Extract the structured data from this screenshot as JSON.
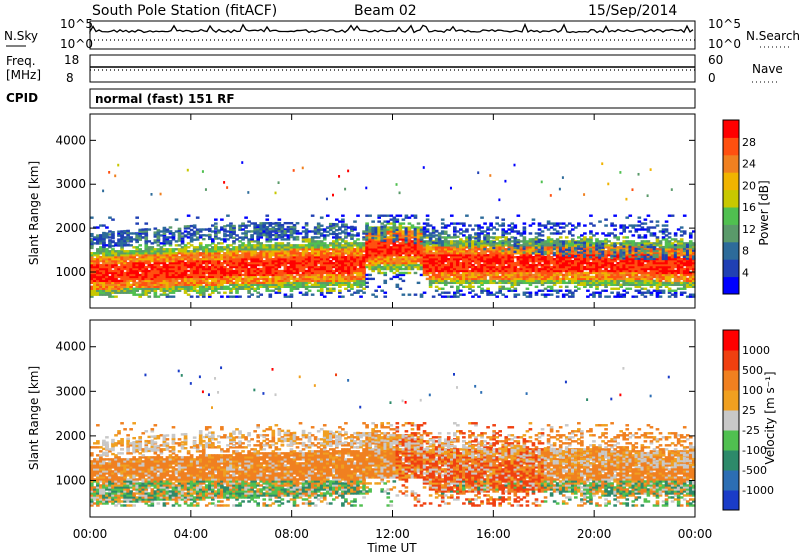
{
  "header": {
    "station": "South Pole Station (fitACF)",
    "beam": "Beam 02",
    "date": "15/Sep/2014"
  },
  "noise_panel": {
    "left_label": "N.Sky",
    "left_ticks": [
      "10^5",
      "10^0"
    ],
    "right_label": "N.Search",
    "right_ticks": [
      "10^5",
      "10^0"
    ]
  },
  "freq_panel": {
    "left_label_1": "Freq.",
    "left_label_2": "[MHz]",
    "left_ticks": [
      "18",
      "8"
    ],
    "right_label": "Nave",
    "right_ticks": [
      "60",
      "0"
    ]
  },
  "cpid_panel": {
    "label": "CPID",
    "mode": "normal (fast) 151 RF"
  },
  "chart_data": [
    {
      "type": "heatmap",
      "title": "Power",
      "parameter": "Power",
      "ylabel": "Slant Range [km]",
      "ylim": [
        180,
        4600
      ],
      "y_ticks": [
        1000,
        2000,
        3000,
        4000
      ],
      "y_tick_labels": [
        "1000",
        "2000",
        "3000",
        "4000"
      ],
      "xlim": [
        "00:00",
        "24:00"
      ],
      "colorbar": {
        "label": "Power [dB]",
        "range": [
          0,
          32
        ],
        "ticks": [
          4,
          8,
          12,
          16,
          20,
          24,
          28
        ],
        "tick_labels": [
          "4",
          "8",
          "12",
          "16",
          "20",
          "24",
          "28"
        ],
        "colors": [
          "#0000ff",
          "#2040b4",
          "#2d6b9a",
          "#5a9a6a",
          "#50c050",
          "#c8c800",
          "#f0b400",
          "#f08020",
          "#ff5010",
          "#ff0000"
        ]
      }
    },
    {
      "type": "heatmap",
      "title": "Velocity",
      "parameter": "Velocity",
      "ylabel": "Slant Range [km]",
      "ylim": [
        180,
        4600
      ],
      "y_ticks": [
        1000,
        2000,
        3000,
        4000
      ],
      "y_tick_labels": [
        "1000",
        "2000",
        "3000",
        "4000"
      ],
      "x_ticks": [
        "00:00",
        "04:00",
        "08:00",
        "12:00",
        "16:00",
        "20:00",
        "00:00"
      ],
      "xlabel": "Time UT",
      "colorbar": {
        "label": "Velocity [m s⁻¹]",
        "tick_labels": [
          "1000",
          "500",
          "100",
          "25",
          "-25",
          "-100",
          "-500",
          "-1000"
        ],
        "colors": [
          "#1a3cc8",
          "#2c6eb4",
          "#2d8a6a",
          "#50c050",
          "#c8c8c8",
          "#f0a020",
          "#f08020",
          "#f04010",
          "#ff0000"
        ]
      }
    }
  ]
}
